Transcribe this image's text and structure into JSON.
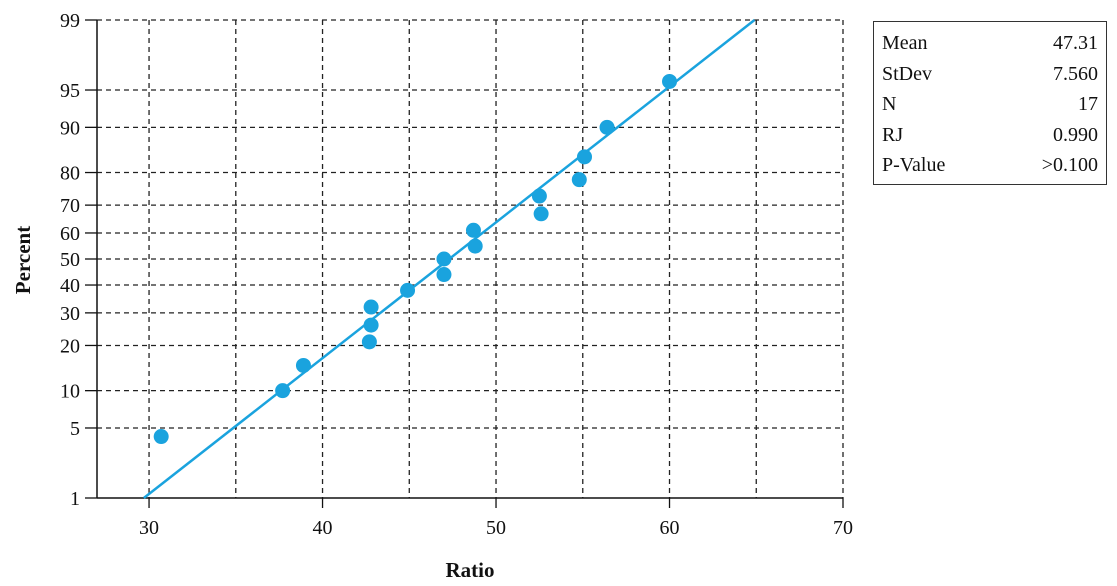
{
  "chart_data": {
    "type": "scatter",
    "title": "",
    "xlabel": "Ratio",
    "ylabel": "Percent",
    "xlim": [
      27,
      70
    ],
    "x_ticks": [
      30,
      40,
      50,
      60,
      70
    ],
    "y_ticks": [
      1,
      5,
      10,
      20,
      30,
      40,
      50,
      60,
      70,
      80,
      90,
      95,
      99
    ],
    "y_scale": "normal-probability",
    "grid": true,
    "colors": {
      "points": "#1aa3de",
      "line": "#1aa3de",
      "grid": "#222222"
    },
    "points": [
      {
        "x": 30.7,
        "y": 4.2
      },
      {
        "x": 37.7,
        "y": 10
      },
      {
        "x": 38.9,
        "y": 15
      },
      {
        "x": 42.7,
        "y": 21
      },
      {
        "x": 42.8,
        "y": 26
      },
      {
        "x": 42.8,
        "y": 32
      },
      {
        "x": 44.9,
        "y": 38
      },
      {
        "x": 47.0,
        "y": 44
      },
      {
        "x": 47.0,
        "y": 50
      },
      {
        "x": 48.8,
        "y": 55
      },
      {
        "x": 48.7,
        "y": 61
      },
      {
        "x": 52.6,
        "y": 67
      },
      {
        "x": 52.5,
        "y": 73
      },
      {
        "x": 54.8,
        "y": 78
      },
      {
        "x": 55.1,
        "y": 84
      },
      {
        "x": 56.4,
        "y": 90
      },
      {
        "x": 60.0,
        "y": 95.8
      }
    ],
    "fit_line": {
      "x": [
        29.7,
        64.9
      ],
      "y": [
        1,
        99
      ]
    }
  },
  "stats": [
    {
      "label": "Mean",
      "value": "47.31"
    },
    {
      "label": "StDev",
      "value": "7.560"
    },
    {
      "label": "N",
      "value": "17"
    },
    {
      "label": "RJ",
      "value": "0.990"
    },
    {
      "label": "P-Value",
      "value": ">0.100"
    }
  ]
}
